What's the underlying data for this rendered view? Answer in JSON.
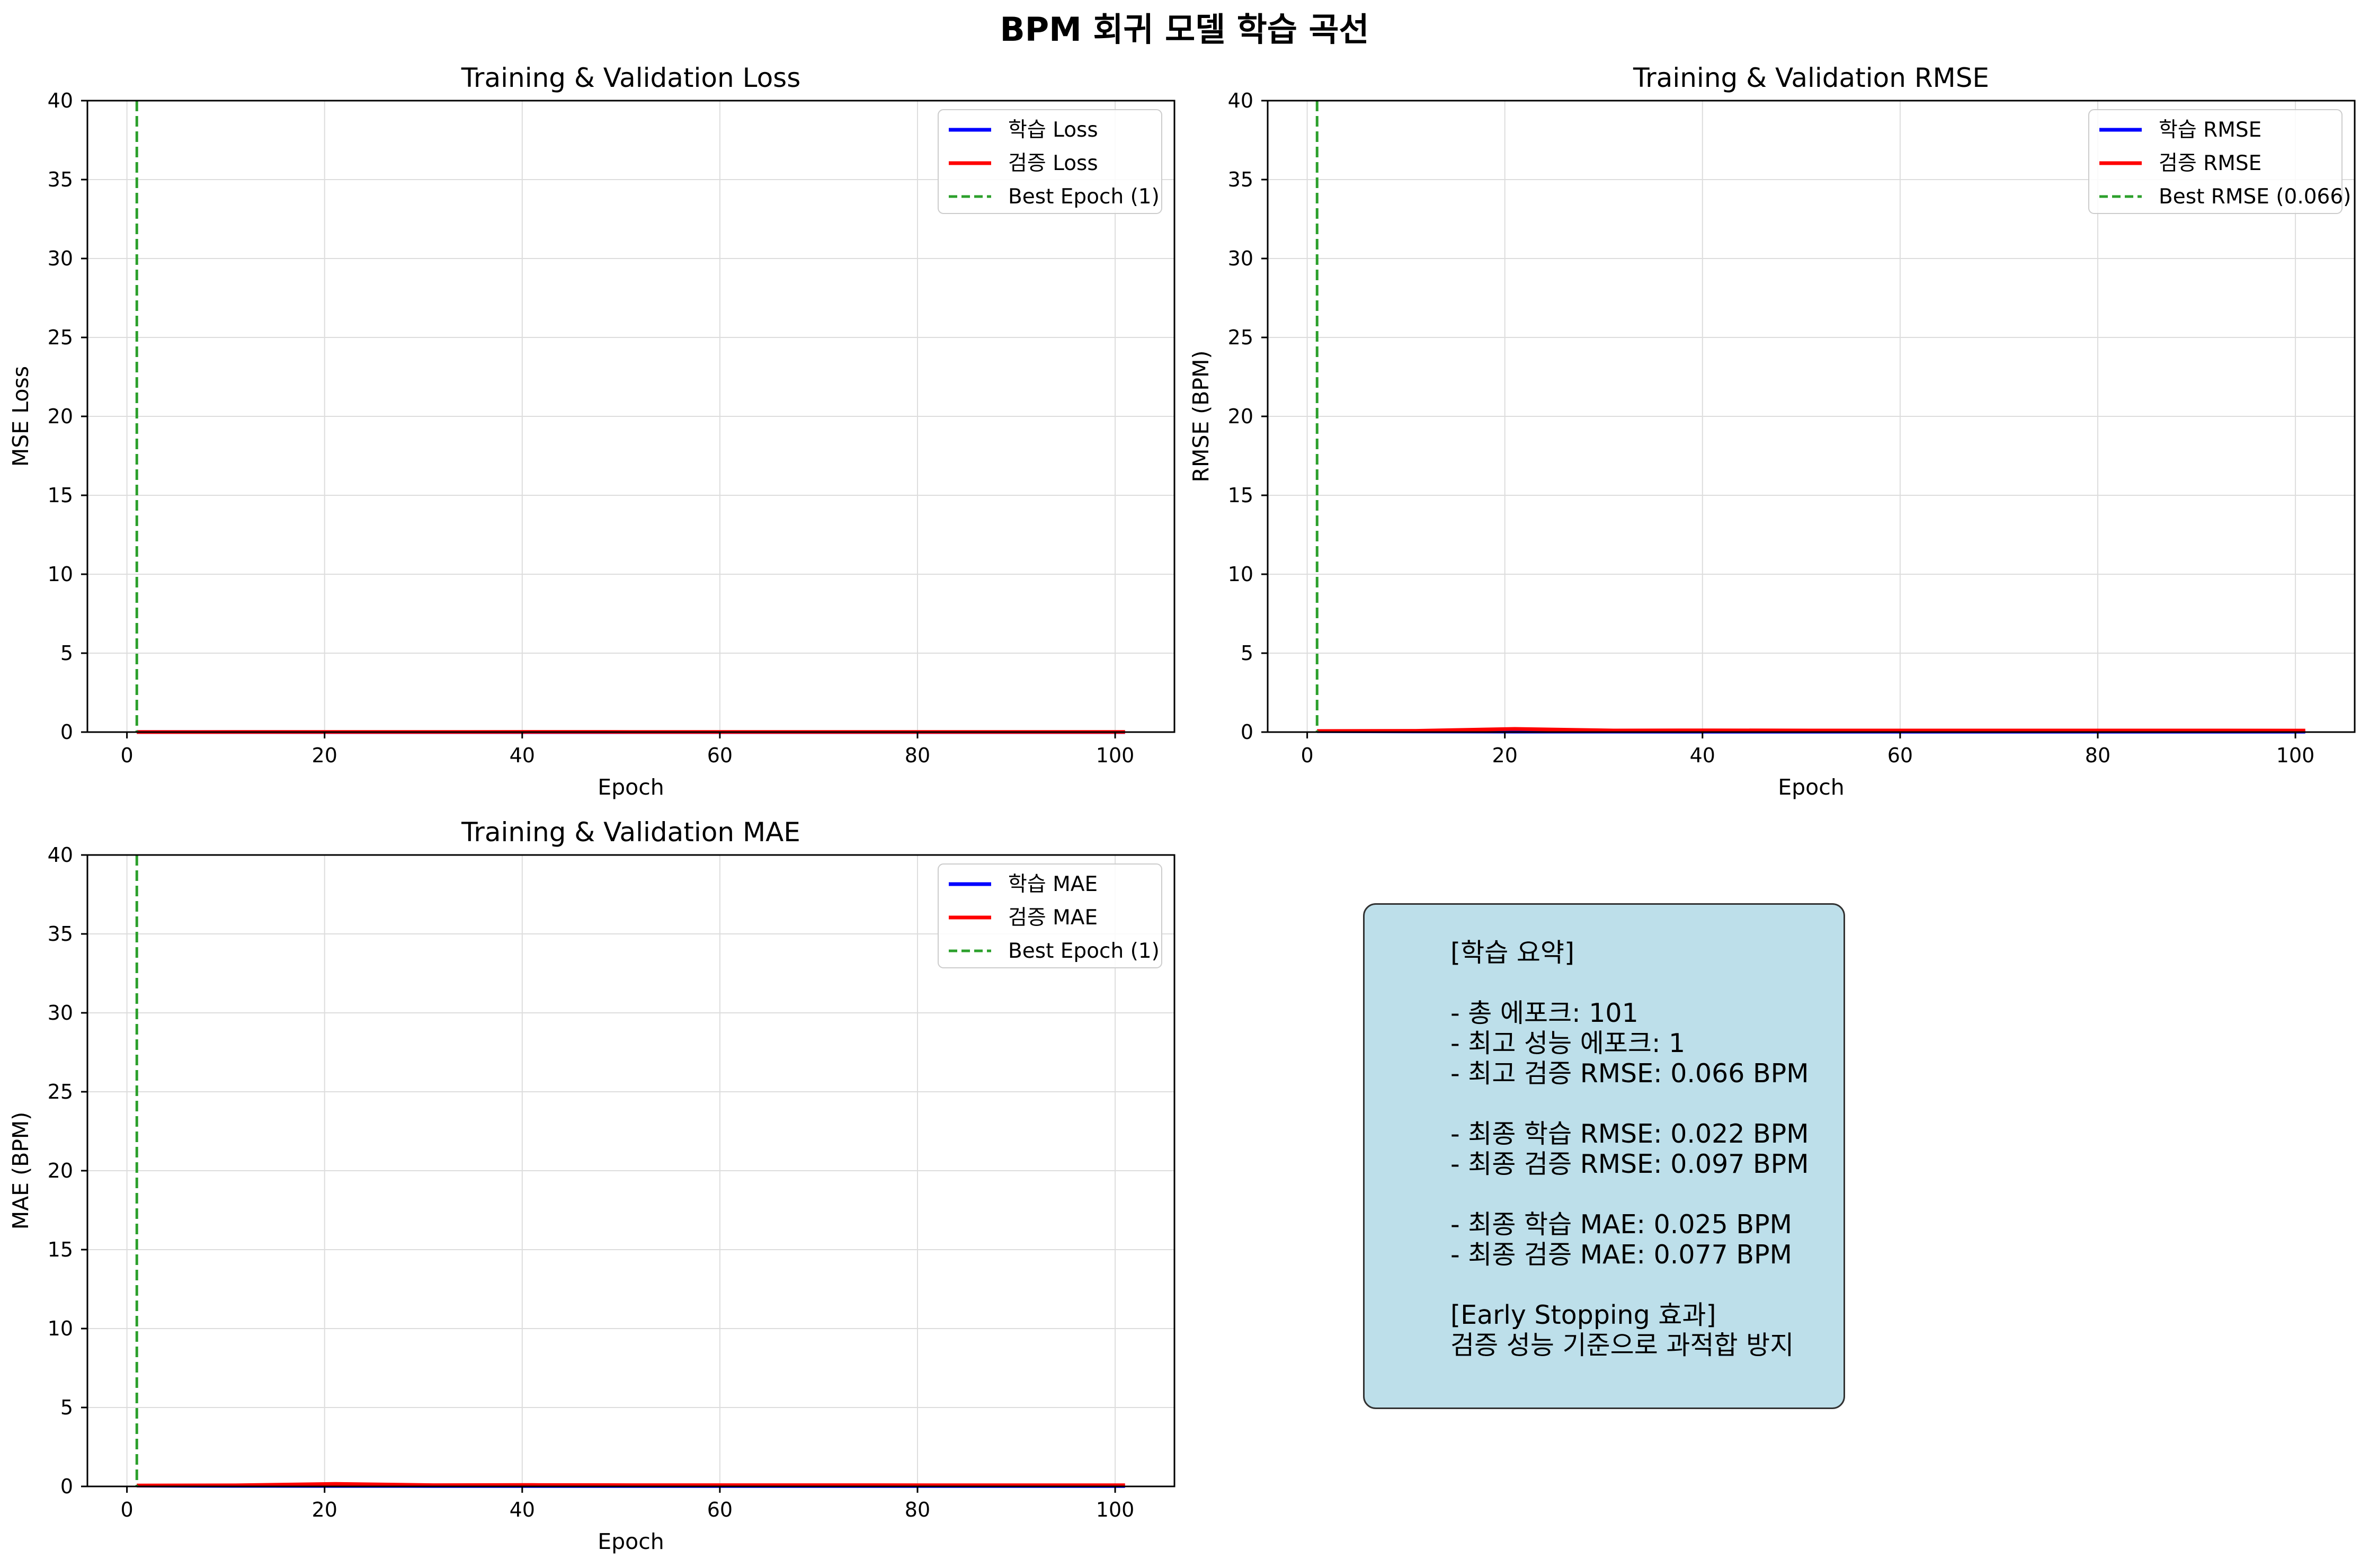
{
  "figure": {
    "suptitle": "BPM 회귀 모델 학습 곡선"
  },
  "colors": {
    "train": "#0000ff",
    "val": "#ff0000",
    "best": "#2ca02c",
    "grid": "#dddddd",
    "summary_bg": "#add8e6"
  },
  "chart_data": [
    {
      "type": "line",
      "id": "loss",
      "title": "Training & Validation Loss",
      "xlabel": "Epoch",
      "ylabel": "MSE Loss",
      "xlim": [
        -4,
        106
      ],
      "ylim": [
        0,
        40
      ],
      "xticks": [
        0,
        20,
        40,
        60,
        80,
        100
      ],
      "yticks": [
        0,
        5,
        10,
        15,
        20,
        25,
        30,
        35,
        40
      ],
      "grid": true,
      "legend_position": "top-right",
      "x_start": 1,
      "x_end": 101,
      "series": [
        {
          "name": "학습 Loss",
          "color": "#0000ff",
          "values": [
            0.004,
            0.002,
            0.001,
            0.001,
            0.001,
            0.001,
            0.001,
            0.001,
            0.001,
            0.001,
            0.001
          ]
        },
        {
          "name": "검증 Loss",
          "color": "#ff0000",
          "values": [
            0.004,
            0.006,
            0.01,
            0.008,
            0.012,
            0.009,
            0.009,
            0.01,
            0.009,
            0.009,
            0.009
          ]
        }
      ],
      "best_line": {
        "x": 1,
        "name": "Best Epoch (1)",
        "color": "#2ca02c"
      }
    },
    {
      "type": "line",
      "id": "rmse",
      "title": "Training & Validation RMSE",
      "xlabel": "Epoch",
      "ylabel": "RMSE (BPM)",
      "xlim": [
        -4,
        106
      ],
      "ylim": [
        0,
        40
      ],
      "xticks": [
        0,
        20,
        40,
        60,
        80,
        100
      ],
      "yticks": [
        0,
        5,
        10,
        15,
        20,
        25,
        30,
        35,
        40
      ],
      "grid": true,
      "legend_position": "top-right",
      "x_start": 1,
      "x_end": 101,
      "series": [
        {
          "name": "학습 RMSE",
          "color": "#0000ff",
          "values": [
            0.06,
            0.04,
            0.03,
            0.03,
            0.025,
            0.025,
            0.024,
            0.023,
            0.022,
            0.022,
            0.022
          ]
        },
        {
          "name": "검증 RMSE",
          "color": "#ff0000",
          "values": [
            0.066,
            0.08,
            0.2,
            0.1,
            0.11,
            0.1,
            0.1,
            0.1,
            0.1,
            0.1,
            0.097
          ]
        }
      ],
      "best_line": {
        "x": 1,
        "name": "Best RMSE (0.066)",
        "color": "#2ca02c"
      }
    },
    {
      "type": "line",
      "id": "mae",
      "title": "Training & Validation MAE",
      "xlabel": "Epoch",
      "ylabel": "MAE (BPM)",
      "xlim": [
        -4,
        106
      ],
      "ylim": [
        0,
        40
      ],
      "xticks": [
        0,
        20,
        40,
        60,
        80,
        100
      ],
      "yticks": [
        0,
        5,
        10,
        15,
        20,
        25,
        30,
        35,
        40
      ],
      "grid": true,
      "legend_position": "top-right",
      "x_start": 1,
      "x_end": 101,
      "series": [
        {
          "name": "학습 MAE",
          "color": "#0000ff",
          "values": [
            0.05,
            0.035,
            0.03,
            0.028,
            0.027,
            0.026,
            0.026,
            0.025,
            0.025,
            0.025,
            0.025
          ]
        },
        {
          "name": "검증 MAE",
          "color": "#ff0000",
          "values": [
            0.06,
            0.07,
            0.16,
            0.08,
            0.09,
            0.08,
            0.08,
            0.08,
            0.078,
            0.077,
            0.077
          ]
        }
      ],
      "best_line": {
        "x": 1,
        "name": "Best Epoch (1)",
        "color": "#2ca02c"
      }
    }
  ],
  "summary": {
    "lines": [
      "[학습 요약]",
      "",
      "- 총 에포크: 101",
      "- 최고 성능 에포크: 1",
      "- 최고 검증 RMSE: 0.066 BPM",
      "",
      "- 최종 학습 RMSE: 0.022 BPM",
      "- 최종 검증 RMSE: 0.097 BPM",
      "",
      "- 최종 학습 MAE: 0.025 BPM",
      "- 최종 검증 MAE: 0.077 BPM",
      "",
      "[Early Stopping 효과]",
      "검증 성능 기준으로 과적합 방지"
    ]
  }
}
